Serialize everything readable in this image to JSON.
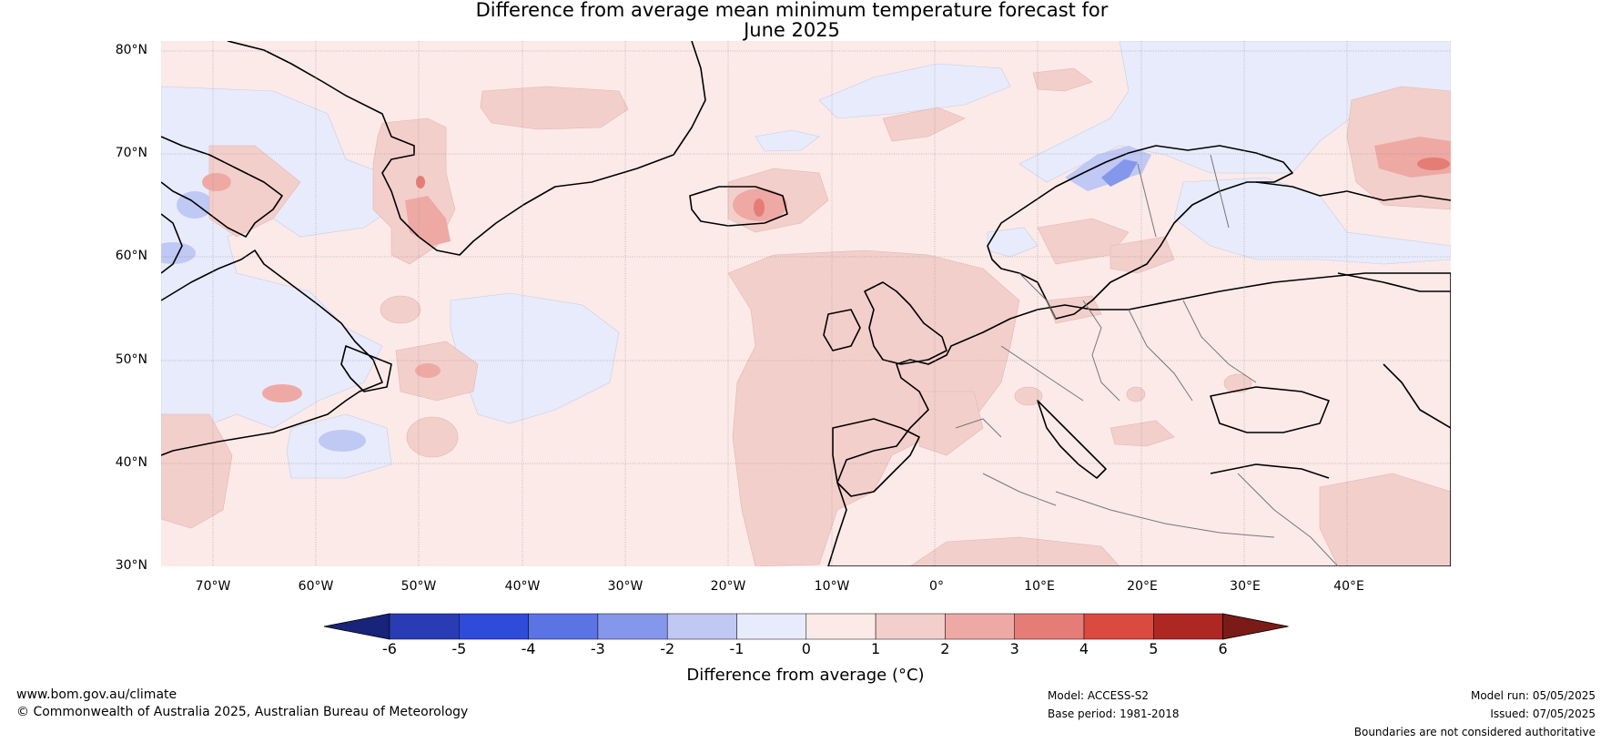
{
  "title": {
    "line1": "Difference from average mean minimum temperature forecast for",
    "line2": "June 2025"
  },
  "map": {
    "lat_labels": [
      "80°N",
      "70°N",
      "60°N",
      "50°N",
      "40°N",
      "30°N"
    ],
    "lon_labels": [
      "70°W",
      "60°W",
      "50°W",
      "40°W",
      "30°W",
      "20°W",
      "10°W",
      "0°",
      "10°E",
      "20°E",
      "30°E",
      "40°E"
    ],
    "extent": {
      "lon_min": -75,
      "lon_max": 50,
      "lat_min": 30,
      "lat_max": 81
    }
  },
  "colorbar": {
    "ticks": [
      "-6",
      "-5",
      "-4",
      "-3",
      "-2",
      "-1",
      "0",
      "1",
      "2",
      "3",
      "4",
      "5",
      "6"
    ],
    "colors": [
      "#18237a",
      "#2a3cb3",
      "#2f4bd9",
      "#5b74e3",
      "#8497ea",
      "#c0c8f4",
      "#e8ebfb",
      "#fbeae8",
      "#f3cfcb",
      "#eea9a4",
      "#e47d76",
      "#da4a40",
      "#ad2822",
      "#7a1b18"
    ],
    "label": "Difference from average (°C)"
  },
  "footer": {
    "website": "www.bom.gov.au/climate",
    "copyright": "© Commonwealth of Australia 2025, Australian Bureau of Meteorology",
    "model": "Model: ACCESS-S2",
    "base_period": "Base period: 1981-2018",
    "model_run": "Model run: 05/05/2025",
    "issued": "Issued: 07/05/2025",
    "disclaimer": "Boundaries are not considered authoritative"
  }
}
